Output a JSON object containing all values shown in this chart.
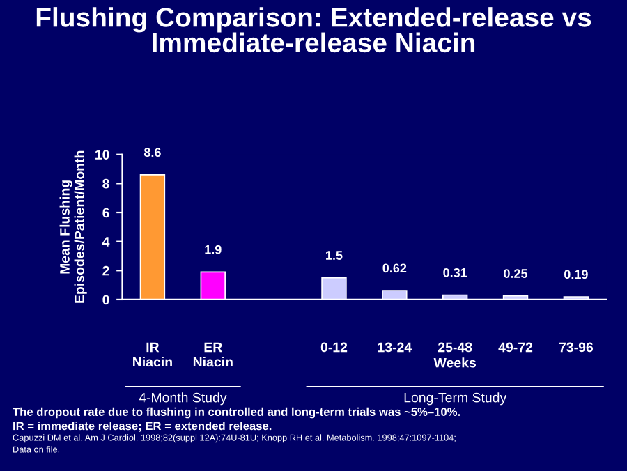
{
  "chart_data": {
    "type": "bar",
    "title": "Flushing Comparison: Extended-release vs\nImmediate-release Niacin",
    "ylabel": "Mean Flushing\nEpisodes/Patient/Month",
    "categories": [
      "IR\nNiacin",
      "ER\nNiacin",
      null,
      "0-12",
      "13-24",
      "25-48",
      "49-72",
      "73-96"
    ],
    "values": [
      8.6,
      1.9,
      null,
      1.5,
      0.62,
      0.31,
      0.25,
      0.19
    ],
    "colors": [
      "#ff9933",
      "#ff00ff",
      "#ccccff",
      "#ccccff",
      "#ccccff",
      "#ccccff",
      "#ccccff",
      "#ccccff"
    ],
    "ylim": [
      0,
      10
    ],
    "yticks": [
      0,
      2,
      4,
      6,
      8,
      10
    ],
    "data_labels": true,
    "grid": false,
    "legend": false,
    "annotations": [
      "Weeks",
      "4-Month Study",
      "Long-Term Study",
      "The dropout rate due to flushing in controlled and long-term trials was ~5%–10%.",
      "IR = immediate release; ER = extended release.",
      "Capuzzi DM et al. Am J Cardiol. 1998;82(suppl 12A):74U-81U; Knopp RH et al. Metabolism. 1998;47:1097-1104;",
      "Data on file."
    ]
  }
}
